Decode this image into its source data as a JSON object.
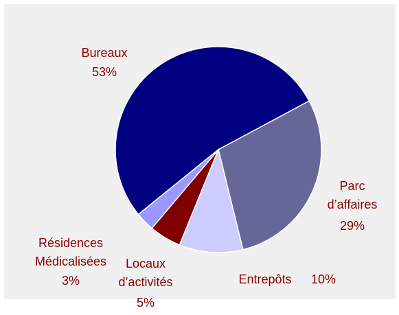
{
  "chart_data": {
    "type": "pie",
    "categories": [
      "Bureaux",
      "Parc\nd’affaires",
      "Entrepôts",
      "Locaux\nd’activités",
      "Résidences\nMédicalisées"
    ],
    "values": [
      53,
      29,
      10,
      5,
      3
    ],
    "value_labels": [
      "53%",
      "29%",
      "10%",
      "5%",
      "3%"
    ],
    "colors": [
      "#000080",
      "#666699",
      "#ccccff",
      "#800000",
      "#9999ff"
    ]
  }
}
